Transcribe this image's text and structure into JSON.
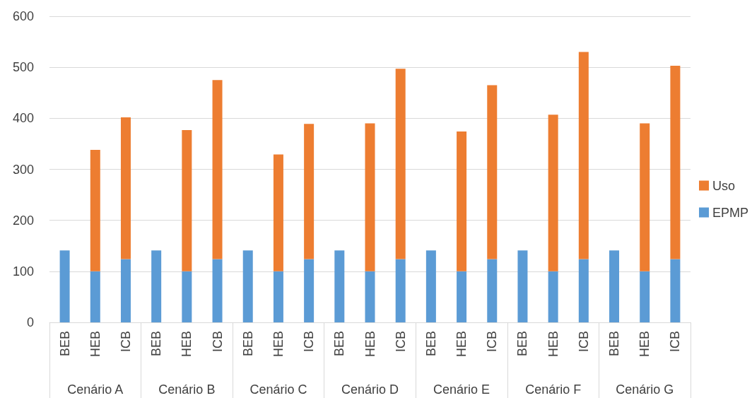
{
  "chart_data": {
    "type": "bar",
    "stacked": true,
    "categories": [
      "BEB",
      "HEB",
      "ICB",
      "BEB",
      "HEB",
      "ICB",
      "BEB",
      "HEB",
      "ICB",
      "BEB",
      "HEB",
      "ICB",
      "BEB",
      "HEB",
      "ICB",
      "BEB",
      "HEB",
      "ICB",
      "BEB",
      "HEB",
      "ICB"
    ],
    "annotations": [
      "Cenário A",
      "Cenário B",
      "Cenário C",
      "Cenário D",
      "Cenário E",
      "Cenário F",
      "Cenário G"
    ],
    "series": [
      {
        "name": "EPMP",
        "color": "#5b9bd5",
        "values": [
          141,
          100,
          124,
          141,
          100,
          124,
          141,
          100,
          124,
          141,
          100,
          124,
          141,
          100,
          124,
          141,
          100,
          124,
          141,
          100,
          124
        ]
      },
      {
        "name": "Uso",
        "color": "#ed7d31",
        "values": [
          null,
          238,
          278,
          null,
          277,
          351,
          null,
          229,
          265,
          null,
          290,
          373,
          null,
          274,
          341,
          null,
          307,
          406,
          null,
          290,
          379
        ]
      }
    ],
    "ylim": [
      0,
      600
    ],
    "yticks": [
      0,
      100,
      200,
      300,
      400,
      500,
      600
    ],
    "grid": "y",
    "legend": "right"
  }
}
